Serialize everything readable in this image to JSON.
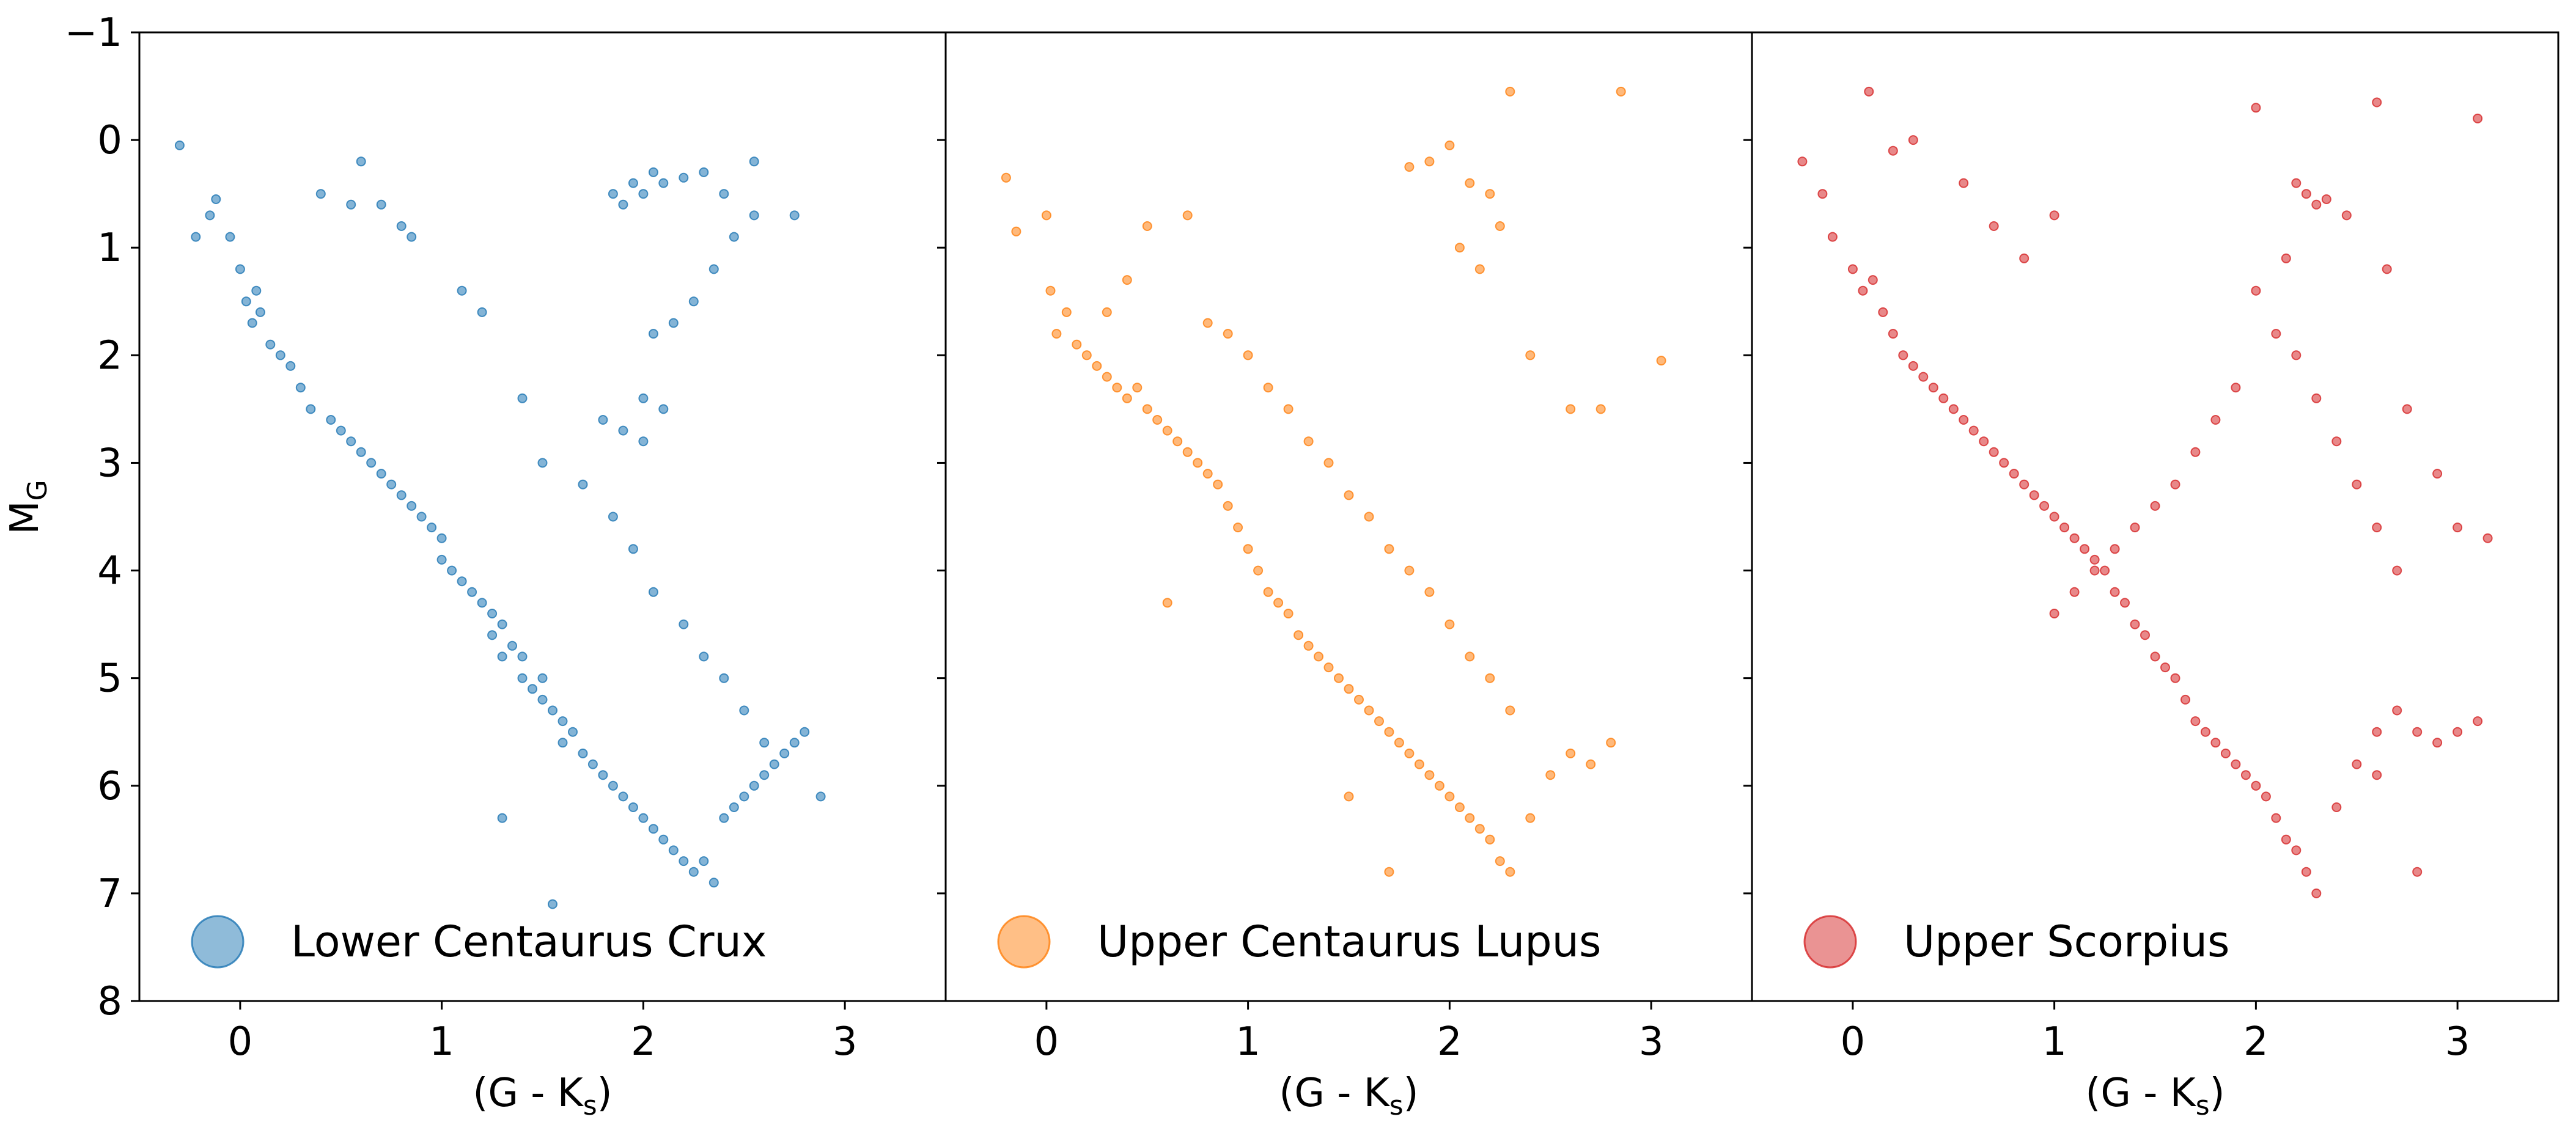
{
  "figure": {
    "ylabel": "M",
    "ylabel_sub": "G",
    "yticks": [
      "−1",
      "0",
      "1",
      "2",
      "3",
      "4",
      "5",
      "6",
      "7",
      "8"
    ],
    "ylim": [
      -1,
      8
    ],
    "y_inverted": true
  },
  "chart_data": [
    {
      "type": "scatter",
      "xlabel_main": "(G - K",
      "xlabel_sub": "s",
      "xlabel_end": ")",
      "xlim": [
        -0.5,
        3.5
      ],
      "xticks": [
        "0",
        "1",
        "2",
        "3"
      ],
      "ylim": [
        -1,
        8
      ],
      "legend": {
        "label": "Lower Centaurus Crux",
        "placement": "lower-left"
      },
      "color": "#1f77b4",
      "series": [
        {
          "name": "Lower Centaurus Crux",
          "x": [
            -0.3,
            -0.22,
            -0.15,
            -0.12,
            -0.05,
            0.0,
            0.03,
            0.06,
            0.08,
            0.1,
            0.15,
            0.2,
            0.25,
            0.3,
            0.35,
            0.45,
            0.5,
            0.55,
            0.6,
            0.65,
            0.7,
            0.75,
            0.8,
            0.85,
            0.9,
            0.95,
            1.0,
            1.0,
            1.05,
            1.1,
            1.15,
            1.2,
            1.25,
            1.25,
            1.3,
            1.3,
            1.35,
            1.4,
            1.4,
            1.45,
            1.5,
            1.5,
            1.55,
            1.6,
            1.6,
            1.65,
            1.7,
            1.75,
            1.8,
            1.85,
            1.9,
            1.95,
            2.0,
            2.05,
            2.1,
            2.15,
            2.2,
            2.25,
            2.3,
            2.35,
            2.4,
            2.45,
            2.5,
            2.55,
            2.6,
            2.65,
            2.7,
            2.75,
            2.8,
            2.88,
            1.55,
            1.3,
            2.0,
            2.1,
            1.8,
            1.9,
            2.0,
            2.05,
            2.15,
            2.25,
            2.35,
            2.45,
            2.55,
            1.85,
            1.95,
            2.05,
            1.9,
            2.0,
            2.1,
            2.2,
            2.3,
            2.4,
            2.55,
            2.75,
            0.4,
            0.55,
            0.6,
            0.7,
            0.8,
            0.85,
            1.1,
            1.2,
            1.4,
            1.5,
            1.7,
            1.85,
            1.95,
            2.05,
            2.2,
            2.3,
            2.4,
            2.5,
            2.6
          ],
          "y": [
            0.05,
            0.9,
            0.7,
            0.55,
            0.9,
            1.2,
            1.5,
            1.7,
            1.4,
            1.6,
            1.9,
            2.0,
            2.1,
            2.3,
            2.5,
            2.6,
            2.7,
            2.8,
            2.9,
            3.0,
            3.1,
            3.2,
            3.3,
            3.4,
            3.5,
            3.6,
            3.7,
            3.9,
            4.0,
            4.1,
            4.2,
            4.3,
            4.4,
            4.6,
            4.5,
            4.8,
            4.7,
            4.8,
            5.0,
            5.1,
            5.0,
            5.2,
            5.3,
            5.4,
            5.6,
            5.5,
            5.7,
            5.8,
            5.9,
            6.0,
            6.1,
            6.2,
            6.3,
            6.4,
            6.5,
            6.6,
            6.7,
            6.8,
            6.7,
            6.9,
            6.3,
            6.2,
            6.1,
            6.0,
            5.9,
            5.8,
            5.7,
            5.6,
            5.5,
            6.1,
            7.1,
            6.3,
            2.4,
            2.5,
            2.6,
            2.7,
            2.8,
            1.8,
            1.7,
            1.5,
            1.2,
            0.9,
            0.7,
            0.5,
            0.4,
            0.3,
            0.6,
            0.5,
            0.4,
            0.35,
            0.3,
            0.5,
            0.2,
            0.7,
            0.5,
            0.6,
            0.2,
            0.6,
            0.8,
            0.9,
            1.4,
            1.6,
            2.4,
            3.0,
            3.2,
            3.5,
            3.8,
            4.2,
            4.5,
            4.8,
            5.0,
            5.3,
            5.6
          ]
        }
      ]
    },
    {
      "type": "scatter",
      "xlabel_main": "(G - K",
      "xlabel_sub": "s",
      "xlabel_end": ")",
      "xlim": [
        -0.5,
        3.5
      ],
      "xticks": [
        "0",
        "1",
        "2",
        "3"
      ],
      "ylim": [
        -1,
        8
      ],
      "legend": {
        "label": "Upper Centaurus Lupus",
        "placement": "lower-left"
      },
      "color": "#ff7f0e",
      "series": [
        {
          "name": "Upper Centaurus Lupus",
          "x": [
            -0.2,
            -0.15,
            0.0,
            0.02,
            0.05,
            0.1,
            0.15,
            0.2,
            0.25,
            0.3,
            0.35,
            0.4,
            0.45,
            0.5,
            0.55,
            0.6,
            0.65,
            0.7,
            0.75,
            0.8,
            0.85,
            0.9,
            0.95,
            1.0,
            1.05,
            1.1,
            1.15,
            1.2,
            1.25,
            1.3,
            1.35,
            1.4,
            1.45,
            1.5,
            1.55,
            1.6,
            1.65,
            1.7,
            1.75,
            1.8,
            1.85,
            1.9,
            1.95,
            2.0,
            2.05,
            2.1,
            2.15,
            2.2,
            2.25,
            2.3,
            2.4,
            2.5,
            2.6,
            2.7,
            2.8,
            0.6,
            2.3,
            2.85,
            1.5,
            1.7,
            1.8,
            1.9,
            2.0,
            2.1,
            2.2,
            2.05,
            2.15,
            2.25,
            2.4,
            3.05,
            2.6,
            2.75,
            0.3,
            0.4,
            0.5,
            0.7,
            0.8,
            0.9,
            1.0,
            1.1,
            1.2,
            1.3,
            1.4,
            1.5,
            1.6,
            1.7,
            1.8,
            1.9,
            2.0,
            2.1,
            2.2,
            2.3
          ],
          "y": [
            0.35,
            0.85,
            0.7,
            1.4,
            1.8,
            1.6,
            1.9,
            2.0,
            2.1,
            2.2,
            2.3,
            2.4,
            2.3,
            2.5,
            2.6,
            2.7,
            2.8,
            2.9,
            3.0,
            3.1,
            3.2,
            3.4,
            3.6,
            3.8,
            4.0,
            4.2,
            4.3,
            4.4,
            4.6,
            4.7,
            4.8,
            4.9,
            5.0,
            5.1,
            5.2,
            5.3,
            5.4,
            5.5,
            5.6,
            5.7,
            5.8,
            5.9,
            6.0,
            6.1,
            6.2,
            6.3,
            6.4,
            6.5,
            6.7,
            6.8,
            6.3,
            5.9,
            5.7,
            5.8,
            5.6,
            4.3,
            -0.45,
            -0.45,
            6.1,
            6.8,
            0.25,
            0.2,
            0.05,
            0.4,
            0.5,
            1.0,
            1.2,
            0.8,
            2.0,
            2.05,
            2.5,
            2.5,
            1.6,
            1.3,
            0.8,
            0.7,
            1.7,
            1.8,
            2.0,
            2.3,
            2.5,
            2.8,
            3.0,
            3.3,
            3.5,
            3.8,
            4.0,
            4.2,
            4.5,
            4.8,
            5.0,
            5.3
          ]
        }
      ]
    },
    {
      "type": "scatter",
      "xlabel_main": "(G - K",
      "xlabel_sub": "s",
      "xlabel_end": ")",
      "xlim": [
        -0.5,
        3.5
      ],
      "xticks": [
        "0",
        "1",
        "2",
        "3"
      ],
      "ylim": [
        -1,
        8
      ],
      "legend": {
        "label": "Upper Scorpius",
        "placement": "lower-left"
      },
      "color": "#d62728",
      "series": [
        {
          "name": "Upper Scorpius",
          "x": [
            -0.25,
            -0.15,
            -0.1,
            0.0,
            0.05,
            0.1,
            0.15,
            0.2,
            0.25,
            0.3,
            0.35,
            0.4,
            0.45,
            0.5,
            0.55,
            0.6,
            0.65,
            0.7,
            0.75,
            0.8,
            0.85,
            0.9,
            0.95,
            1.0,
            1.05,
            1.1,
            1.15,
            1.2,
            1.25,
            1.3,
            1.35,
            1.4,
            1.45,
            1.5,
            1.55,
            1.6,
            1.65,
            1.7,
            1.75,
            1.8,
            1.85,
            1.9,
            1.95,
            2.0,
            2.05,
            2.1,
            2.15,
            2.2,
            2.25,
            2.3,
            2.4,
            2.5,
            2.6,
            2.7,
            2.8,
            2.9,
            3.0,
            3.1,
            0.08,
            0.2,
            0.3,
            0.55,
            0.7,
            0.85,
            1.0,
            2.0,
            2.6,
            3.1,
            2.2,
            2.25,
            2.3,
            2.35,
            2.45,
            2.15,
            2.65,
            2.75,
            2.9,
            3.0,
            3.15,
            2.6,
            2.8,
            2.0,
            2.1,
            1.9,
            1.8,
            1.7,
            1.6,
            1.5,
            1.4,
            1.3,
            1.2,
            1.1,
            1.0,
            2.2,
            2.3,
            2.4,
            2.5,
            2.6,
            2.7
          ],
          "y": [
            0.2,
            0.5,
            0.9,
            1.2,
            1.4,
            1.3,
            1.6,
            1.8,
            2.0,
            2.1,
            2.2,
            2.3,
            2.4,
            2.5,
            2.6,
            2.7,
            2.8,
            2.9,
            3.0,
            3.1,
            3.2,
            3.3,
            3.4,
            3.5,
            3.6,
            3.7,
            3.8,
            3.9,
            4.0,
            4.2,
            4.3,
            4.5,
            4.6,
            4.8,
            4.9,
            5.0,
            5.2,
            5.4,
            5.5,
            5.6,
            5.7,
            5.8,
            5.9,
            6.0,
            6.1,
            6.3,
            6.5,
            6.6,
            6.8,
            7.0,
            6.2,
            5.8,
            5.5,
            5.3,
            5.5,
            5.6,
            5.5,
            5.4,
            -0.45,
            0.1,
            0.0,
            0.4,
            0.8,
            1.1,
            0.7,
            -0.3,
            -0.35,
            -0.2,
            0.4,
            0.5,
            0.6,
            0.55,
            0.7,
            1.1,
            1.2,
            2.5,
            3.1,
            3.6,
            3.7,
            5.9,
            6.8,
            1.4,
            1.8,
            2.3,
            2.6,
            2.9,
            3.2,
            3.4,
            3.6,
            3.8,
            4.0,
            4.2,
            4.4,
            2.0,
            2.4,
            2.8,
            3.2,
            3.6,
            4.0
          ]
        }
      ]
    }
  ]
}
